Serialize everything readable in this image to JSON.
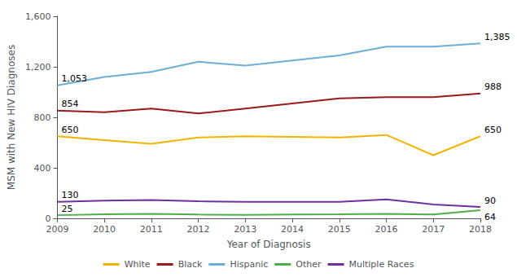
{
  "chart_data": {
    "type": "line",
    "x": [
      2009,
      2010,
      2011,
      2012,
      2013,
      2014,
      2015,
      2016,
      2017,
      2018
    ],
    "series": [
      {
        "name": "White",
        "color": "#F0B400",
        "values": [
          650,
          620,
          590,
          640,
          650,
          645,
          640,
          660,
          500,
          650
        ]
      },
      {
        "name": "Black",
        "color": "#9B1B1B",
        "values": [
          854,
          840,
          870,
          830,
          870,
          910,
          950,
          960,
          960,
          988
        ]
      },
      {
        "name": "Hispanic",
        "color": "#6BAED6",
        "values": [
          1053,
          1120,
          1160,
          1240,
          1210,
          1250,
          1290,
          1360,
          1360,
          1385
        ]
      },
      {
        "name": "Other",
        "color": "#4DAF4A",
        "values": [
          25,
          32,
          35,
          30,
          28,
          30,
          32,
          35,
          30,
          64
        ]
      },
      {
        "name": "Multiple Races",
        "color": "#7030A0",
        "values": [
          130,
          140,
          145,
          135,
          130,
          130,
          130,
          150,
          110,
          90
        ]
      }
    ],
    "xlabel": "Year of Diagnosis",
    "ylabel": "MSM with New HIV Diagnoses",
    "xlim": [
      2009,
      2018
    ],
    "xticks": [
      2009,
      2010,
      2011,
      2012,
      2013,
      2014,
      2015,
      2016,
      2017,
      2018
    ],
    "ylim": [
      0,
      1600
    ],
    "yticks": [
      0,
      400,
      800,
      {
        "value": 1200,
        "label": "1,200"
      },
      {
        "value": 1600,
        "label": "1,600"
      }
    ],
    "grid": false,
    "legend": "bottom",
    "annotations": [
      {
        "text": "1,053",
        "x": 2009,
        "y": 1053
      },
      {
        "text": "854",
        "x": 2009,
        "y": 854
      },
      {
        "text": "650",
        "x": 2009,
        "y": 650
      },
      {
        "text": "130",
        "x": 2009,
        "y": 130
      },
      {
        "text": "25",
        "x": 2009,
        "y": 25
      },
      {
        "text": "1,385",
        "x": 2018,
        "y": 1385
      },
      {
        "text": "988",
        "x": 2018,
        "y": 988
      },
      {
        "text": "650",
        "x": 2018,
        "y": 650
      },
      {
        "text": "90",
        "x": 2018,
        "y": 90
      },
      {
        "text": "64",
        "x": 2018,
        "y": 64
      }
    ]
  }
}
